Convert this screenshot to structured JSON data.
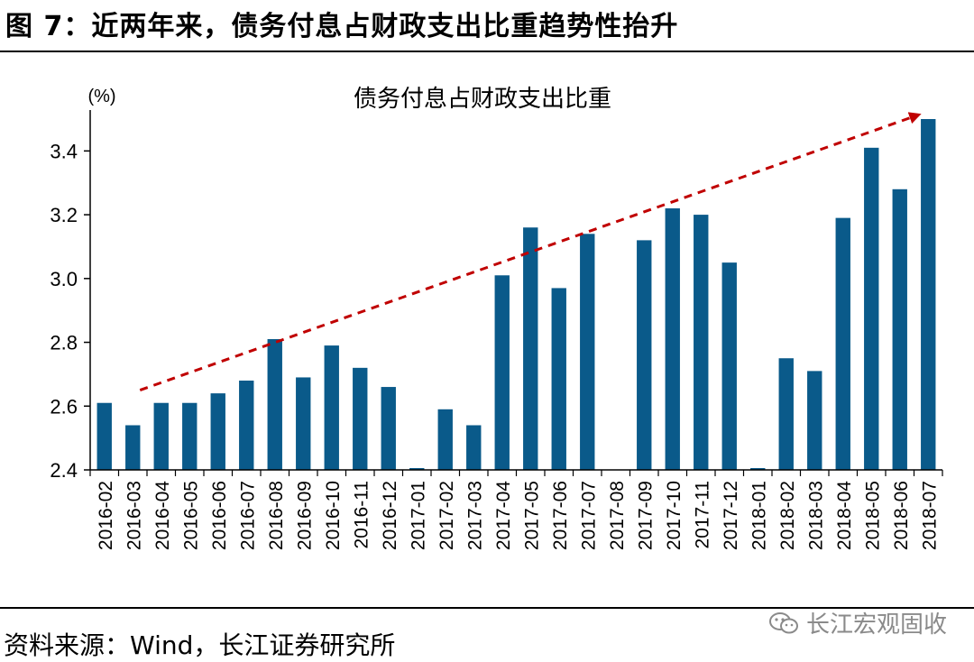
{
  "figure": {
    "title": "图 7：近两年来，债务付息占财政支出比重趋势性抬升",
    "source": "资料来源：Wind，长江证券研究所",
    "watermark": "长江宏观固收",
    "watermark_icon": "wechat-icon"
  },
  "chart_data": {
    "type": "bar",
    "title": "债务付息占财政支出比重",
    "ylabel": "(%)",
    "xlabel": "",
    "ylim": [
      2.4,
      3.5
    ],
    "yticks": [
      2.4,
      2.6,
      2.8,
      3.0,
      3.2,
      3.4
    ],
    "ytick_labels": [
      "2.4",
      "2.6",
      "2.8",
      "3.0",
      "3.2",
      "3.4"
    ],
    "bar_color": "#0a5a8a",
    "arrow_color": "#c00000",
    "grid": false,
    "categories": [
      "2016-02",
      "2016-03",
      "2016-04",
      "2016-05",
      "2016-06",
      "2016-07",
      "2016-08",
      "2016-09",
      "2016-10",
      "2016-11",
      "2016-12",
      "2017-01",
      "2017-02",
      "2017-03",
      "2017-04",
      "2017-05",
      "2017-06",
      "2017-07",
      "2017-08",
      "2017-09",
      "2017-10",
      "2017-11",
      "2017-12",
      "2018-01",
      "2018-02",
      "2018-03",
      "2018-04",
      "2018-05",
      "2018-06",
      "2018-07"
    ],
    "values": [
      2.61,
      2.54,
      2.61,
      2.61,
      2.64,
      2.68,
      2.81,
      2.69,
      2.79,
      2.72,
      2.66,
      2.4,
      2.59,
      2.54,
      3.01,
      3.16,
      2.97,
      3.14,
      null,
      3.12,
      3.22,
      3.2,
      3.05,
      2.4,
      2.75,
      2.71,
      3.19,
      3.41,
      3.28,
      3.5
    ],
    "annotations": [
      {
        "type": "trend-arrow",
        "style": "dashed",
        "from": {
          "x": "2016-03",
          "y": 2.65
        },
        "to": {
          "x": "2018-07",
          "y": 3.51
        }
      }
    ]
  }
}
